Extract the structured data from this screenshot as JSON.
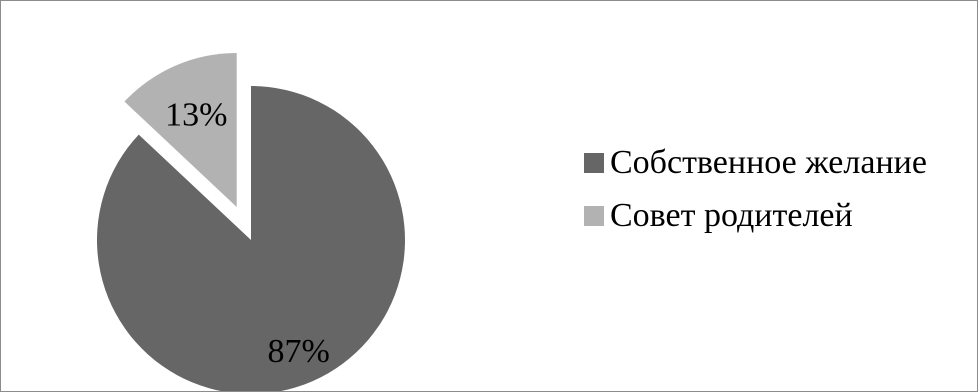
{
  "chart_data": {
    "type": "pie",
    "title": "",
    "slices": [
      {
        "label": "Собственное желание",
        "value": 87,
        "value_label": "87%",
        "color": "#666666",
        "exploded": false
      },
      {
        "label": "Совет родителей",
        "value": 13,
        "value_label": "13%",
        "color": "#b2b2b2",
        "exploded": true
      }
    ],
    "legend_position": "right"
  }
}
